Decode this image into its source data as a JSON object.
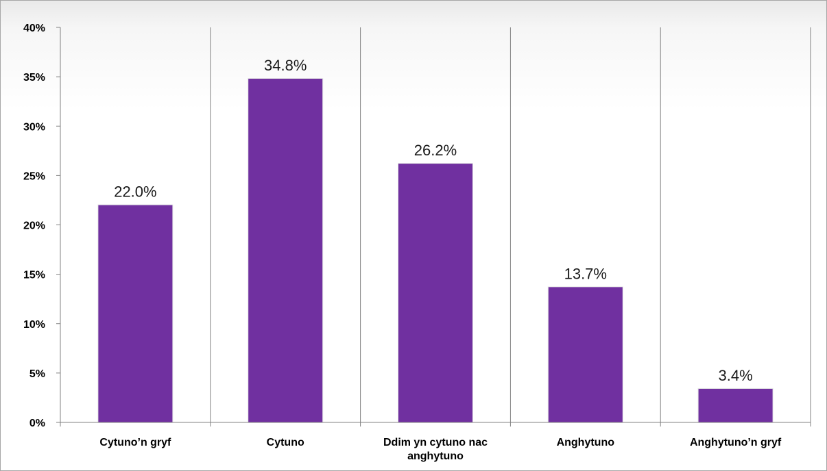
{
  "chart_data": {
    "type": "bar",
    "categories": [
      [
        "Cytuno’n gryf"
      ],
      [
        "Cytuno"
      ],
      [
        "Ddim yn cytuno nac",
        "anghytuno"
      ],
      [
        "Anghytuno"
      ],
      [
        "Anghytuno’n gryf"
      ]
    ],
    "values": [
      22.0,
      34.8,
      26.2,
      13.7,
      3.4
    ],
    "data_labels": [
      "22.0%",
      "34.8%",
      "26.2%",
      "13.7%",
      "3.4%"
    ],
    "yticks": [
      "0%",
      "5%",
      "10%",
      "15%",
      "20%",
      "25%",
      "30%",
      "35%",
      "40%"
    ],
    "ylim": [
      0,
      40
    ],
    "grid": "vertical separators between categories",
    "colors": {
      "bar": "#7030a0",
      "axis": "#808080"
    }
  }
}
